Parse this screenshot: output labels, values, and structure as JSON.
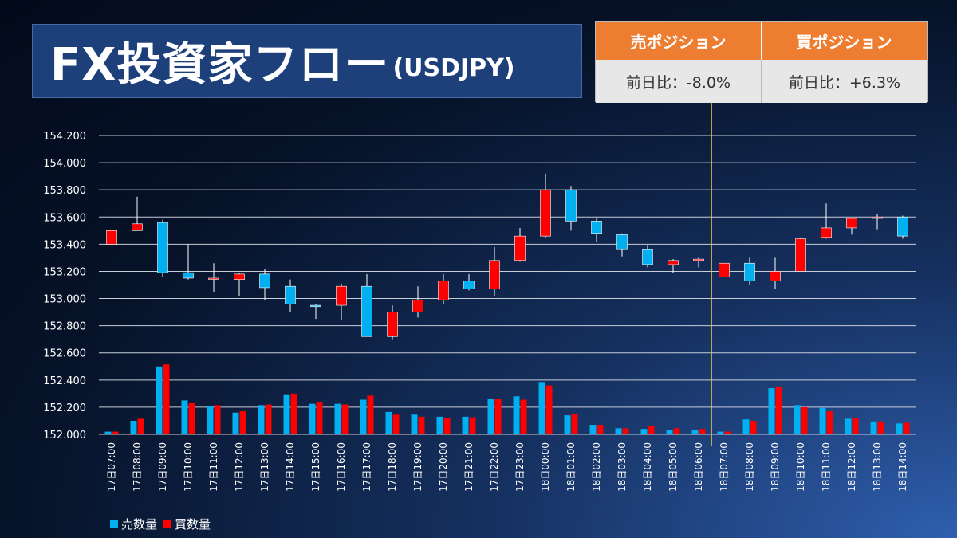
{
  "header": {
    "title": "FX投資家フロー",
    "subtitle": "(USDJPY)"
  },
  "positions": {
    "sell_label": "売ポジション",
    "buy_label": "買ポジション",
    "sell_change": "前日比：-8.0%",
    "buy_change": "前日比：+6.3%"
  },
  "colors": {
    "sell": "#00b0f0",
    "buy": "#ff0000",
    "accent": "#ed7d31",
    "marker": "#f2c94c"
  },
  "chart_data": [
    {
      "type": "candlestick",
      "ylim": [
        152000,
        154200
      ],
      "yticks": [
        "152.000",
        "152.200",
        "152.400",
        "152.600",
        "152.800",
        "153.000",
        "153.200",
        "153.400",
        "153.600",
        "153.800",
        "154.000",
        "154.200"
      ],
      "categories": [
        "17日07:00",
        "17日08:00",
        "17日09:00",
        "17日10:00",
        "17日11:00",
        "17日12:00",
        "17日13:00",
        "17日14:00",
        "17日15:00",
        "17日16:00",
        "17日17:00",
        "17日18:00",
        "17日19:00",
        "17日20:00",
        "17日21:00",
        "17日22:00",
        "17日23:00",
        "18日00:00",
        "18日01:00",
        "18日02:00",
        "18日03:00",
        "18日04:00",
        "18日05:00",
        "18日06:00",
        "18日07:00",
        "18日08:00",
        "18日09:00",
        "18日10:00",
        "18日11:00",
        "18日12:00",
        "18日13:00",
        "18日14:00"
      ],
      "candles": [
        {
          "o": 153400,
          "h": 153500,
          "l": 153400,
          "c": 153500
        },
        {
          "o": 153500,
          "h": 153750,
          "l": 153500,
          "c": 153550
        },
        {
          "o": 153560,
          "h": 153580,
          "l": 153160,
          "c": 153190
        },
        {
          "o": 153190,
          "h": 153400,
          "l": 153140,
          "c": 153150
        },
        {
          "o": 153150,
          "h": 153260,
          "l": 153050,
          "c": 153150
        },
        {
          "o": 153140,
          "h": 153190,
          "l": 153020,
          "c": 153180
        },
        {
          "o": 153180,
          "h": 153220,
          "l": 152990,
          "c": 153080
        },
        {
          "o": 153090,
          "h": 153140,
          "l": 152900,
          "c": 152960
        },
        {
          "o": 152950,
          "h": 152960,
          "l": 152850,
          "c": 152940
        },
        {
          "o": 152950,
          "h": 153110,
          "l": 152840,
          "c": 153090
        },
        {
          "o": 153090,
          "h": 153180,
          "l": 152720,
          "c": 152720
        },
        {
          "o": 152720,
          "h": 152950,
          "l": 152700,
          "c": 152900
        },
        {
          "o": 152900,
          "h": 153090,
          "l": 152860,
          "c": 152990
        },
        {
          "o": 152990,
          "h": 153180,
          "l": 152960,
          "c": 153130
        },
        {
          "o": 153130,
          "h": 153180,
          "l": 153060,
          "c": 153070
        },
        {
          "o": 153070,
          "h": 153380,
          "l": 153020,
          "c": 153280
        },
        {
          "o": 153280,
          "h": 153520,
          "l": 153270,
          "c": 153460
        },
        {
          "o": 153460,
          "h": 153920,
          "l": 153450,
          "c": 153800
        },
        {
          "o": 153800,
          "h": 153830,
          "l": 153500,
          "c": 153570
        },
        {
          "o": 153570,
          "h": 153590,
          "l": 153420,
          "c": 153480
        },
        {
          "o": 153470,
          "h": 153480,
          "l": 153310,
          "c": 153360
        },
        {
          "o": 153360,
          "h": 153390,
          "l": 153230,
          "c": 153250
        },
        {
          "o": 153250,
          "h": 153290,
          "l": 153190,
          "c": 153280
        },
        {
          "o": 153280,
          "h": 153300,
          "l": 153230,
          "c": 153290
        },
        {
          "o": 153160,
          "h": 153260,
          "l": 153160,
          "c": 153260
        },
        {
          "o": 153260,
          "h": 153300,
          "l": 153100,
          "c": 153130
        },
        {
          "o": 153130,
          "h": 153300,
          "l": 153070,
          "c": 153200
        },
        {
          "o": 153200,
          "h": 153450,
          "l": 153200,
          "c": 153440
        },
        {
          "o": 153450,
          "h": 153700,
          "l": 153440,
          "c": 153520
        },
        {
          "o": 153520,
          "h": 153590,
          "l": 153470,
          "c": 153590
        },
        {
          "o": 153590,
          "h": 153620,
          "l": 153510,
          "c": 153600
        },
        {
          "o": 153600,
          "h": 153610,
          "l": 153440,
          "c": 153460
        }
      ],
      "marker_after_index": 23
    },
    {
      "type": "bar",
      "series": [
        {
          "name": "売数量",
          "values": [
            20,
            100,
            500,
            250,
            210,
            160,
            215,
            295,
            225,
            225,
            255,
            165,
            145,
            130,
            130,
            260,
            280,
            385,
            140,
            70,
            45,
            40,
            35,
            30,
            20,
            110,
            340,
            215,
            195,
            115,
            95,
            80
          ]
        },
        {
          "name": "買数量",
          "values": [
            20,
            115,
            515,
            235,
            215,
            170,
            220,
            300,
            240,
            220,
            285,
            145,
            130,
            120,
            125,
            260,
            255,
            360,
            150,
            70,
            45,
            60,
            45,
            40,
            20,
            100,
            350,
            200,
            170,
            120,
            95,
            85
          ]
        }
      ]
    }
  ]
}
